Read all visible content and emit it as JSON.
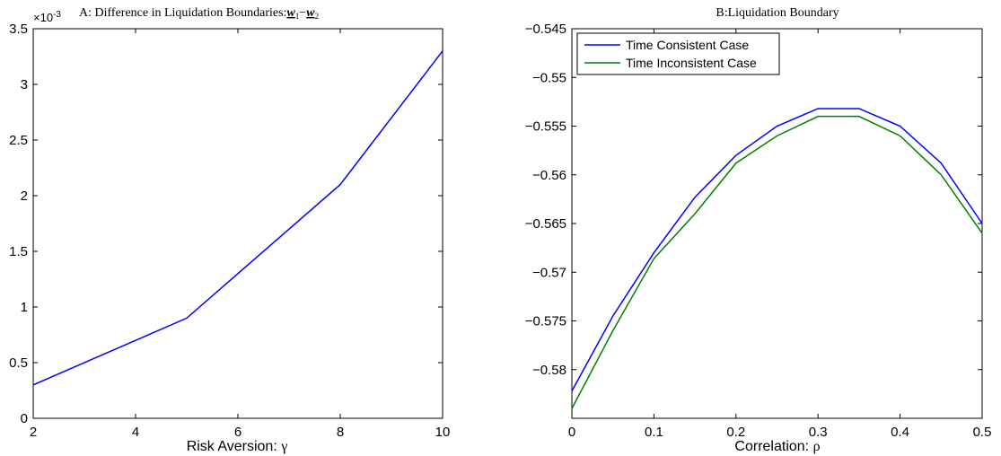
{
  "chart_data": [
    {
      "type": "line",
      "title": "A: Difference in Liquidation Boundaries:",
      "title_math": {
        "a": "w",
        "a_sub": "1",
        "op": "−",
        "b": "w",
        "b_sub": "2"
      },
      "xlabel": "Risk Aversion: ",
      "xlabel_symbol": "γ",
      "ylabel": "",
      "exponent_label": "×10",
      "exponent_power": "-3",
      "xlim": [
        2,
        10
      ],
      "ylim": [
        0,
        3.5
      ],
      "xticks": [
        "2",
        "4",
        "6",
        "8",
        "10"
      ],
      "yticks": [
        "0",
        "0.5",
        "1",
        "1.5",
        "2",
        "2.5",
        "3",
        "3.5"
      ],
      "series": [
        {
          "x": [
            2,
            5,
            8,
            10
          ],
          "y": [
            0.3,
            0.9,
            2.1,
            3.3
          ],
          "color": "#0000ff"
        }
      ]
    },
    {
      "type": "line",
      "title": "B:Liquidation Boundary",
      "xlabel": "Correlation: ",
      "xlabel_symbol": "ρ",
      "ylabel": "",
      "xlim": [
        0,
        0.5
      ],
      "ylim": [
        -0.585,
        -0.545
      ],
      "xticks": [
        "0",
        "0.1",
        "0.2",
        "0.3",
        "0.4",
        "0.5"
      ],
      "yticks": [
        "-0.545",
        "-0.55",
        "-0.555",
        "-0.56",
        "-0.565",
        "-0.57",
        "-0.575",
        "-0.58"
      ],
      "legend_position": "top-left",
      "series": [
        {
          "name": "Time Consistent Case",
          "color": "#0000ff",
          "x": [
            0,
            0.05,
            0.1,
            0.15,
            0.2,
            0.25,
            0.3,
            0.35,
            0.4,
            0.45,
            0.5
          ],
          "y": [
            -0.5822,
            -0.5745,
            -0.568,
            -0.5623,
            -0.558,
            -0.555,
            -0.5532,
            -0.5532,
            -0.555,
            -0.5588,
            -0.565
          ]
        },
        {
          "name": "Time Inconsistent Case",
          "color": "#008000",
          "x": [
            0,
            0.05,
            0.1,
            0.15,
            0.2,
            0.25,
            0.3,
            0.35,
            0.4,
            0.45,
            0.5
          ],
          "y": [
            -0.584,
            -0.576,
            -0.5686,
            -0.564,
            -0.5588,
            -0.556,
            -0.554,
            -0.554,
            -0.556,
            -0.56,
            -0.566
          ]
        }
      ]
    }
  ]
}
